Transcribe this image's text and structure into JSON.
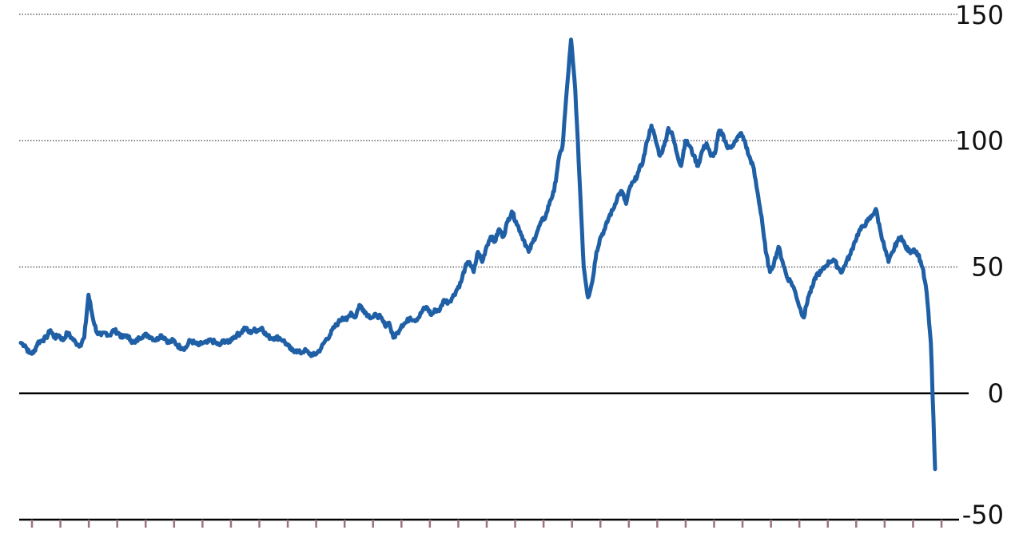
{
  "chart_data": {
    "type": "line",
    "title": "",
    "xlabel": "",
    "ylabel": "",
    "ylim": [
      -50,
      150
    ],
    "yticks": [
      -50,
      0,
      50,
      100,
      150
    ],
    "ytick_labels": [
      "-50",
      "0",
      "50",
      "100",
      "150"
    ],
    "y_axis_side": "right",
    "grid": "horizontal dotted",
    "legend": "none",
    "x_tick_count": 33,
    "series": [
      {
        "color": "#1f5fa6",
        "values": [
          20,
          19,
          16,
          16,
          20,
          21,
          22,
          25,
          22,
          23,
          21,
          24,
          22,
          20,
          19,
          22,
          39,
          30,
          24,
          23,
          24,
          23,
          25,
          24,
          22,
          23,
          21,
          20,
          22,
          23,
          23,
          22,
          21,
          23,
          22,
          20,
          21,
          19,
          18,
          18,
          21,
          20,
          19,
          20,
          20,
          21,
          20,
          19,
          21,
          20,
          22,
          23,
          24,
          26,
          24,
          25,
          25,
          26,
          23,
          22,
          22,
          22,
          21,
          19,
          17,
          17,
          16,
          17,
          16,
          15,
          16,
          18,
          21,
          23,
          26,
          28,
          30,
          29,
          32,
          30,
          35,
          33,
          31,
          30,
          31,
          30,
          27,
          28,
          22,
          24,
          27,
          28,
          30,
          29,
          30,
          33,
          34,
          31,
          33,
          33,
          37,
          36,
          38,
          41,
          44,
          50,
          52,
          48,
          56,
          52,
          58,
          62,
          60,
          65,
          62,
          68,
          72,
          68,
          64,
          60,
          56,
          60,
          64,
          68,
          70,
          76,
          80,
          92,
          98,
          120,
          140,
          120,
          85,
          50,
          38,
          44,
          56,
          62,
          65,
          70,
          73,
          78,
          80,
          75,
          82,
          84,
          88,
          92,
          100,
          106,
          100,
          94,
          98,
          105,
          102,
          95,
          90,
          100,
          98,
          94,
          90,
          96,
          99,
          94,
          95,
          104,
          102,
          97,
          98,
          100,
          103,
          100,
          94,
          90,
          80,
          70,
          56,
          48,
          52,
          58,
          52,
          46,
          44,
          40,
          34,
          30,
          38,
          42,
          47,
          48,
          50,
          52,
          53,
          50,
          48,
          52,
          55,
          60,
          64,
          66,
          68,
          70,
          73,
          65,
          58,
          52,
          56,
          60,
          62,
          58,
          56,
          57,
          55,
          50,
          40,
          20,
          -30
        ]
      }
    ]
  }
}
